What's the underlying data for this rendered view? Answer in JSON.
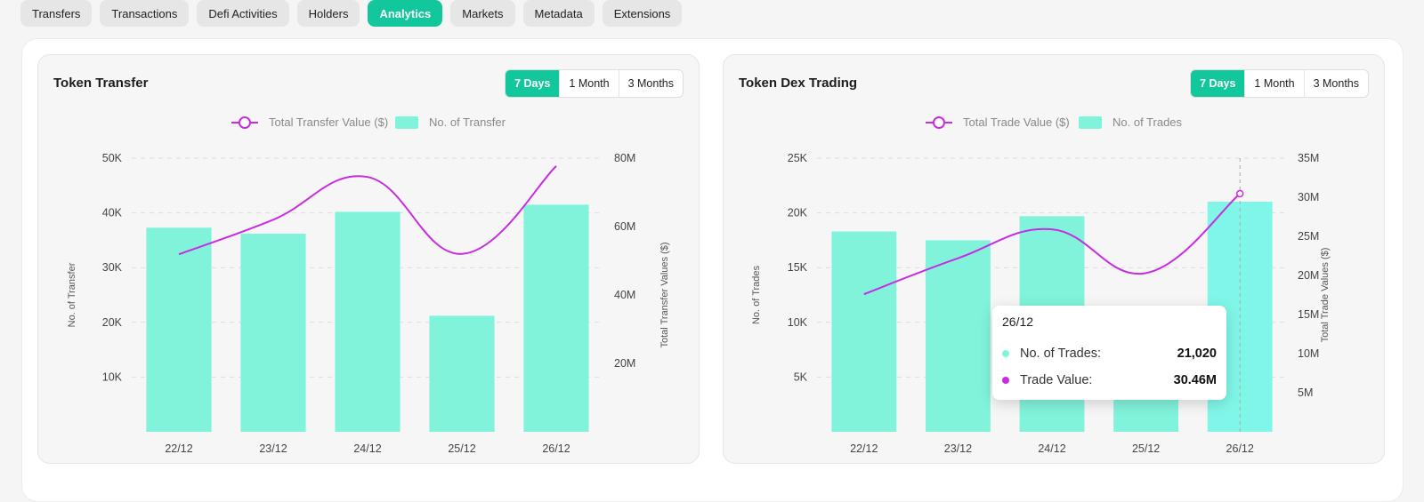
{
  "tabs": [
    {
      "label": "Transfers"
    },
    {
      "label": "Transactions"
    },
    {
      "label": "Defi Activities"
    },
    {
      "label": "Holders"
    },
    {
      "label": "Analytics",
      "active": true
    },
    {
      "label": "Markets"
    },
    {
      "label": "Metadata"
    },
    {
      "label": "Extensions"
    }
  ],
  "ranges": [
    "7 Days",
    "1 Month",
    "3 Months"
  ],
  "colors": {
    "accent": "#12c79b",
    "bar": "#81f3da",
    "bar_highlight": "#80f6e8",
    "line": "#c82ce0"
  },
  "cards": {
    "transfer": {
      "title": "Token Transfer",
      "legend": {
        "line": "Total Transfer Value ($)",
        "bar": "No. of Transfer"
      },
      "left_ticks": [
        "50K",
        "40K",
        "30K",
        "20K",
        "10K"
      ],
      "right_ticks": [
        "80M",
        "60M",
        "40M",
        "20M"
      ],
      "y_left_label": "No. of Transfer",
      "y_right_label": "Total Transfer Values ($)"
    },
    "dex": {
      "title": "Token Dex Trading",
      "legend": {
        "line": "Total Trade Value ($)",
        "bar": "No. of Trades"
      },
      "left_ticks": [
        "25K",
        "20K",
        "15K",
        "10K",
        "5K"
      ],
      "right_ticks": [
        "35M",
        "30M",
        "25M",
        "20M",
        "15M",
        "10M",
        "5M"
      ],
      "y_left_label": "No. of Trades",
      "y_right_label": "Total Trade Values ($)"
    }
  },
  "tooltip": {
    "date": "26/12",
    "trades_label": "No. of Trades:",
    "trades_value": "21,020",
    "value_label": "Trade Value:",
    "value_value": "30.46M"
  },
  "chart_data": [
    {
      "type": "bar",
      "title": "Token Transfer",
      "categories": [
        "22/12",
        "23/12",
        "24/12",
        "25/12",
        "26/12"
      ],
      "series": [
        {
          "name": "No. of Transfer",
          "type": "bar",
          "axis": "left",
          "values": [
            37300,
            36200,
            40200,
            21200,
            41500
          ]
        },
        {
          "name": "Total Transfer Value ($)",
          "type": "line",
          "axis": "right",
          "values": [
            51900000,
            62000000,
            74500000,
            52000000,
            77700000
          ]
        }
      ],
      "ylim_left": [
        0,
        50000
      ],
      "ylim_right": [
        0,
        80000000
      ],
      "ylabel": "No. of Transfer",
      "ylabel_right": "Total Transfer Values ($)",
      "grid": true,
      "legend": "top-center"
    },
    {
      "type": "bar",
      "title": "Token Dex Trading",
      "categories": [
        "22/12",
        "23/12",
        "24/12",
        "25/12",
        "26/12"
      ],
      "series": [
        {
          "name": "No. of Trades",
          "type": "bar",
          "axis": "left",
          "values": [
            18300,
            17500,
            19700,
            10100,
            21020
          ]
        },
        {
          "name": "Total Trade Value ($)",
          "type": "line",
          "axis": "right",
          "values": [
            17600000,
            22200000,
            25900000,
            20300000,
            30460000
          ]
        }
      ],
      "ylim_left": [
        0,
        25000
      ],
      "ylim_right": [
        0,
        35000000
      ],
      "ylabel": "No. of Trades",
      "ylabel_right": "Total Trade Values ($)",
      "grid": true,
      "legend": "top-center"
    }
  ]
}
